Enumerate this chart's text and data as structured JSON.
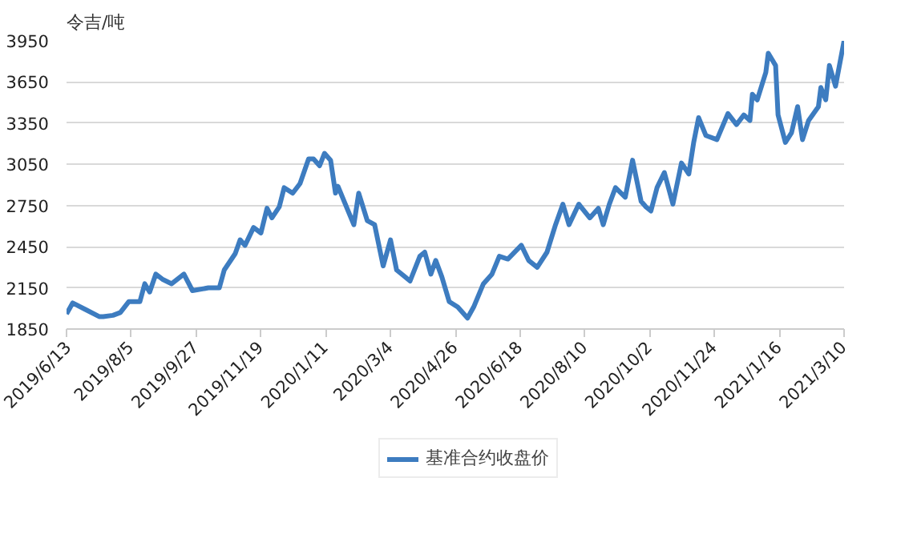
{
  "chart_data": {
    "type": "line",
    "ylabel": "令吉/吨",
    "legend": "bottom",
    "grid": "y",
    "marker": "none",
    "line_style": "solid",
    "xlim": [
      "2019-06-13",
      "2021-03-10"
    ],
    "ylim": [
      1850,
      3950
    ],
    "yticks": [
      1850,
      2150,
      2450,
      2750,
      3050,
      3350,
      3650,
      3950
    ],
    "xticks": [
      {
        "value": "2019-06-13",
        "label": "2019/6/13"
      },
      {
        "value": "2019-08-05",
        "label": "2019/8/5"
      },
      {
        "value": "2019-09-27",
        "label": "2019/9/27"
      },
      {
        "value": "2019-11-19",
        "label": "2019/11/19"
      },
      {
        "value": "2020-01-11",
        "label": "2020/1/11"
      },
      {
        "value": "2020-03-04",
        "label": "2020/3/4"
      },
      {
        "value": "2020-04-26",
        "label": "2020/4/26"
      },
      {
        "value": "2020-06-18",
        "label": "2020/6/18"
      },
      {
        "value": "2020-08-10",
        "label": "2020/8/10"
      },
      {
        "value": "2020-10-02",
        "label": "2020/10/2"
      },
      {
        "value": "2020-11-24",
        "label": "2020/11/24"
      },
      {
        "value": "2021-01-16",
        "label": "2021/1/16"
      },
      {
        "value": "2021-03-10",
        "label": "2021/3/10"
      }
    ],
    "x": [
      "2019-06-13",
      "2019-06-18",
      "2019-06-29",
      "2019-07-10",
      "2019-07-13",
      "2019-07-21",
      "2019-07-27",
      "2019-08-03",
      "2019-08-12",
      "2019-08-16",
      "2019-08-20",
      "2019-08-25",
      "2019-08-31",
      "2019-09-07",
      "2019-09-17",
      "2019-09-24",
      "2019-10-07",
      "2019-10-16",
      "2019-10-20",
      "2019-10-29",
      "2019-11-02",
      "2019-11-06",
      "2019-11-13",
      "2019-11-19",
      "2019-11-24",
      "2019-11-28",
      "2019-12-04",
      "2019-12-08",
      "2019-12-15",
      "2019-12-21",
      "2019-12-28",
      "2020-01-01",
      "2020-01-06",
      "2020-01-10",
      "2020-01-15",
      "2020-01-19",
      "2020-01-21",
      "2020-02-03",
      "2020-02-07",
      "2020-02-14",
      "2020-02-20",
      "2020-02-27",
      "2020-03-04",
      "2020-03-09",
      "2020-03-20",
      "2020-03-28",
      "2020-04-01",
      "2020-04-06",
      "2020-04-10",
      "2020-04-15",
      "2020-04-21",
      "2020-04-28",
      "2020-05-06",
      "2020-05-11",
      "2020-05-19",
      "2020-05-26",
      "2020-06-01",
      "2020-06-08",
      "2020-06-19",
      "2020-06-25",
      "2020-07-02",
      "2020-07-10",
      "2020-07-17",
      "2020-07-23",
      "2020-07-28",
      "2020-08-05",
      "2020-08-14",
      "2020-08-21",
      "2020-08-25",
      "2020-08-30",
      "2020-09-04",
      "2020-09-12",
      "2020-09-18",
      "2020-09-25",
      "2020-09-29",
      "2020-10-03",
      "2020-10-08",
      "2020-10-14",
      "2020-10-21",
      "2020-10-28",
      "2020-11-03",
      "2020-11-07",
      "2020-11-11",
      "2020-11-17",
      "2020-11-26",
      "2020-12-05",
      "2020-12-12",
      "2020-12-18",
      "2020-12-23",
      "2020-12-25",
      "2020-12-29",
      "2021-01-05",
      "2021-01-07",
      "2021-01-13",
      "2021-01-15",
      "2021-01-21",
      "2021-01-26",
      "2021-01-31",
      "2021-02-04",
      "2021-02-09",
      "2021-02-17",
      "2021-02-19",
      "2021-02-23",
      "2021-02-26",
      "2021-03-03",
      "2021-03-10"
    ],
    "series": [
      {
        "name": "基准合约收盘价",
        "color": "#3d7cc0",
        "values": [
          1960,
          2040,
          1990,
          1940,
          1940,
          1950,
          1970,
          2050,
          2050,
          2180,
          2120,
          2250,
          2210,
          2180,
          2250,
          2130,
          2150,
          2150,
          2280,
          2400,
          2500,
          2460,
          2590,
          2550,
          2730,
          2660,
          2740,
          2880,
          2840,
          2910,
          3090,
          3090,
          3040,
          3130,
          3080,
          2840,
          2890,
          2610,
          2840,
          2640,
          2610,
          2310,
          2500,
          2280,
          2200,
          2380,
          2410,
          2250,
          2350,
          2230,
          2050,
          2010,
          1930,
          2010,
          2180,
          2250,
          2380,
          2360,
          2460,
          2350,
          2300,
          2410,
          2610,
          2760,
          2610,
          2760,
          2660,
          2730,
          2610,
          2760,
          2880,
          2810,
          3080,
          2780,
          2740,
          2710,
          2880,
          2990,
          2760,
          3060,
          2980,
          3210,
          3390,
          3260,
          3230,
          3420,
          3340,
          3410,
          3370,
          3560,
          3520,
          3720,
          3860,
          3770,
          3410,
          3210,
          3280,
          3470,
          3230,
          3370,
          3470,
          3610,
          3520,
          3770,
          3620,
          3950
        ]
      }
    ]
  }
}
